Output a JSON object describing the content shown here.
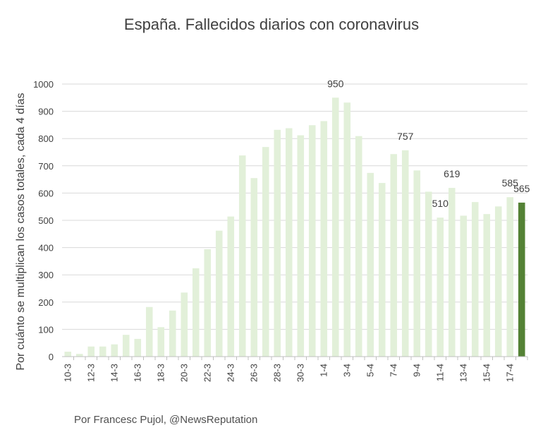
{
  "chart_data": {
    "type": "bar",
    "title": "España. Fallecidos diarios con coronavirus",
    "xlabel": "",
    "ylabel": "Por cuánto se multiplican los casos totales, cada 4 días",
    "ylim": [
      0,
      1000
    ],
    "yticks": [
      0,
      100,
      200,
      300,
      400,
      500,
      600,
      700,
      800,
      900,
      1000
    ],
    "grid": true,
    "categories": [
      "10-3",
      "11-3",
      "12-3",
      "13-3",
      "14-3",
      "15-3",
      "16-3",
      "17-3",
      "18-3",
      "19-3",
      "20-3",
      "21-3",
      "22-3",
      "23-3",
      "24-3",
      "25-3",
      "26-3",
      "27-3",
      "28-3",
      "29-3",
      "30-3",
      "31-3",
      "1-4",
      "2-4",
      "3-4",
      "4-4",
      "5-4",
      "6-4",
      "7-4",
      "8-4",
      "9-4",
      "10-4",
      "11-4",
      "12-4",
      "13-4",
      "14-4",
      "15-4",
      "16-4",
      "17-4",
      "18-4"
    ],
    "visible_tick_labels": [
      "10-3",
      "12-3",
      "14-3",
      "16-3",
      "18-3",
      "20-3",
      "22-3",
      "24-3",
      "26-3",
      "28-3",
      "30-3",
      "1-4",
      "3-4",
      "5-4",
      "7-4",
      "9-4",
      "11-4",
      "13-4",
      "15-4",
      "17-4"
    ],
    "values": [
      18,
      10,
      37,
      37,
      45,
      80,
      65,
      182,
      108,
      169,
      235,
      324,
      394,
      462,
      514,
      738,
      655,
      769,
      832,
      838,
      812,
      849,
      864,
      950,
      932,
      809,
      674,
      637,
      743,
      757,
      683,
      605,
      510,
      619,
      517,
      567,
      523,
      551,
      585,
      565
    ],
    "data_labels": [
      {
        "category": "2-4",
        "text": "950"
      },
      {
        "category": "8-4",
        "text": "757"
      },
      {
        "category": "11-4",
        "text": "510"
      },
      {
        "category": "12-4",
        "text": "619"
      },
      {
        "category": "17-4",
        "text": "585"
      },
      {
        "category": "18-4",
        "text": "565"
      }
    ],
    "colors": {
      "bar": "#e2f0d9",
      "highlight_bar": "#548235",
      "grid": "#d9d9d9",
      "axis": "#bfbfbf"
    },
    "highlight_category": "18-4"
  },
  "footer": {
    "credit": "Por Francesc Pujol, @NewsReputation"
  }
}
